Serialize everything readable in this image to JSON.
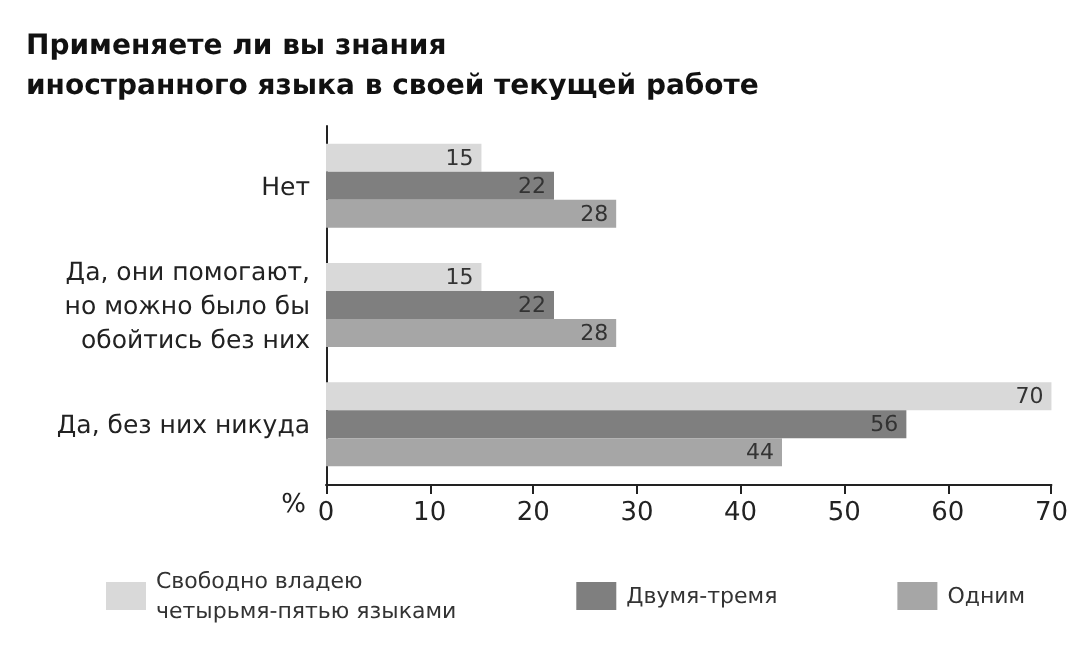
{
  "chart_data": {
    "type": "bar",
    "orientation": "horizontal",
    "title": "Применяете ли вы знания\nиностранного языка в своей текущей работе",
    "xlabel": "%",
    "categories": [
      "Нет",
      "Да, они помогают,\nно можно было бы\nобойтись без них",
      "Да, без них никуда"
    ],
    "series": [
      {
        "name": "Свободно владею\nчетырьмя-пятью языками",
        "color": "#d9d9d9",
        "values": [
          15,
          15,
          70
        ]
      },
      {
        "name": "Двумя-тремя",
        "color": "#7f7f7f",
        "values": [
          22,
          22,
          56
        ]
      },
      {
        "name": "Одним",
        "color": "#a6a6a6",
        "values": [
          28,
          28,
          44
        ]
      }
    ],
    "xlim": [
      0,
      70
    ],
    "xticks": [
      0,
      10,
      20,
      30,
      40,
      50,
      60,
      70
    ],
    "data_labels": true,
    "grid": false,
    "legend": "bottom"
  }
}
